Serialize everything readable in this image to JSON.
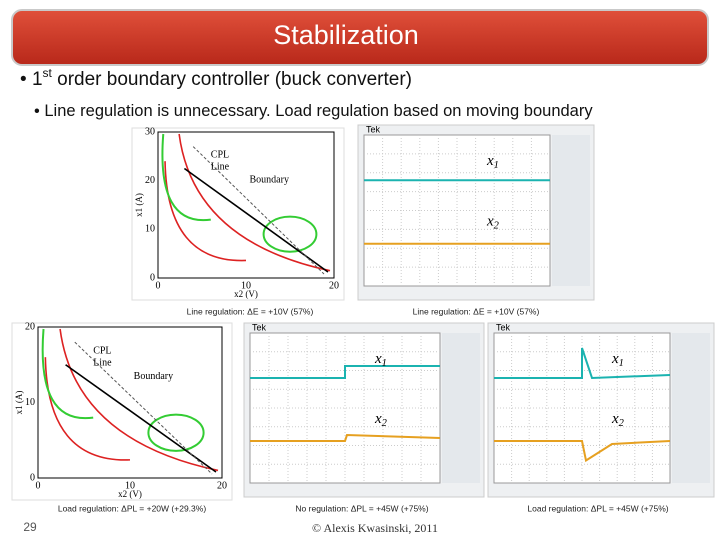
{
  "title": "Stabilization",
  "bullets": [
    {
      "number": "1",
      "suffix": "st",
      "text": "order boundary controller (buck converter)"
    },
    {
      "text": "Line regulation is unnecessary. Load regulation based on moving boundary"
    }
  ],
  "phase_plots": [
    {
      "cpl": "CPL",
      "line": "Line",
      "boundary": "Boundary",
      "yticks": [
        "0",
        "10",
        "20",
        "30"
      ],
      "xticks": [
        "0",
        "10",
        "20"
      ],
      "ylabel": "x1 (A)",
      "xlabel": "x2 (V)"
    },
    {
      "cpl": "CPL",
      "line": "Line",
      "boundary": "Boundary",
      "yticks": [
        "0",
        "10",
        "20"
      ],
      "xticks": [
        "0",
        "10",
        "20"
      ],
      "ylabel": "x1 (A)",
      "xlabel": "x2 (V)"
    }
  ],
  "scopes": [
    {
      "brand": "Tek",
      "x1": {
        "base": "x",
        "sub": "1"
      },
      "x2": {
        "base": "x",
        "sub": "2"
      }
    },
    {
      "brand": "Tek",
      "x1": {
        "base": "x",
        "sub": "1"
      },
      "x2": {
        "base": "x",
        "sub": "2"
      }
    },
    {
      "brand": "Tek",
      "x1": {
        "base": "x",
        "sub": "1"
      },
      "x2": {
        "base": "x",
        "sub": "2"
      }
    }
  ],
  "captions": [
    "Line regulation: ΔE = +10V (57%)",
    "Line regulation: ΔE = +10V (57%)",
    "Load regulation: ΔPL = +20W (+29.3%)",
    "No regulation: ΔPL = +45W (+75%)",
    "Load regulation: ΔPL = +45W (+75%)"
  ],
  "footer": {
    "page": "29",
    "copyright": "© Alexis Kwasinski, 2011"
  }
}
